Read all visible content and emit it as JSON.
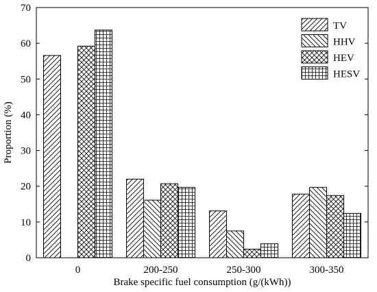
{
  "chart_data": {
    "type": "bar",
    "title": "",
    "xlabel": "Brake specific fuel consumption (g/(kWh))",
    "ylabel": "Proportion (%)",
    "ylim": [
      0,
      70
    ],
    "yticks": [
      0,
      10,
      20,
      30,
      40,
      50,
      60,
      70
    ],
    "categories": [
      "0",
      "200-250",
      "250-300",
      "300-350"
    ],
    "series": [
      {
        "name": "TV",
        "pattern": "diag-up",
        "values": [
          56.6,
          22.0,
          13.1,
          17.8
        ]
      },
      {
        "name": "HHV",
        "pattern": "diag-down",
        "values": [
          0.0,
          16.1,
          7.5,
          19.7
        ]
      },
      {
        "name": "HEV",
        "pattern": "crosshatch",
        "values": [
          59.2,
          20.7,
          2.4,
          17.4
        ]
      },
      {
        "name": "HESV",
        "pattern": "grid",
        "values": [
          63.7,
          19.7,
          3.9,
          12.4
        ]
      }
    ],
    "legend_position": "top-right",
    "grid": false
  }
}
